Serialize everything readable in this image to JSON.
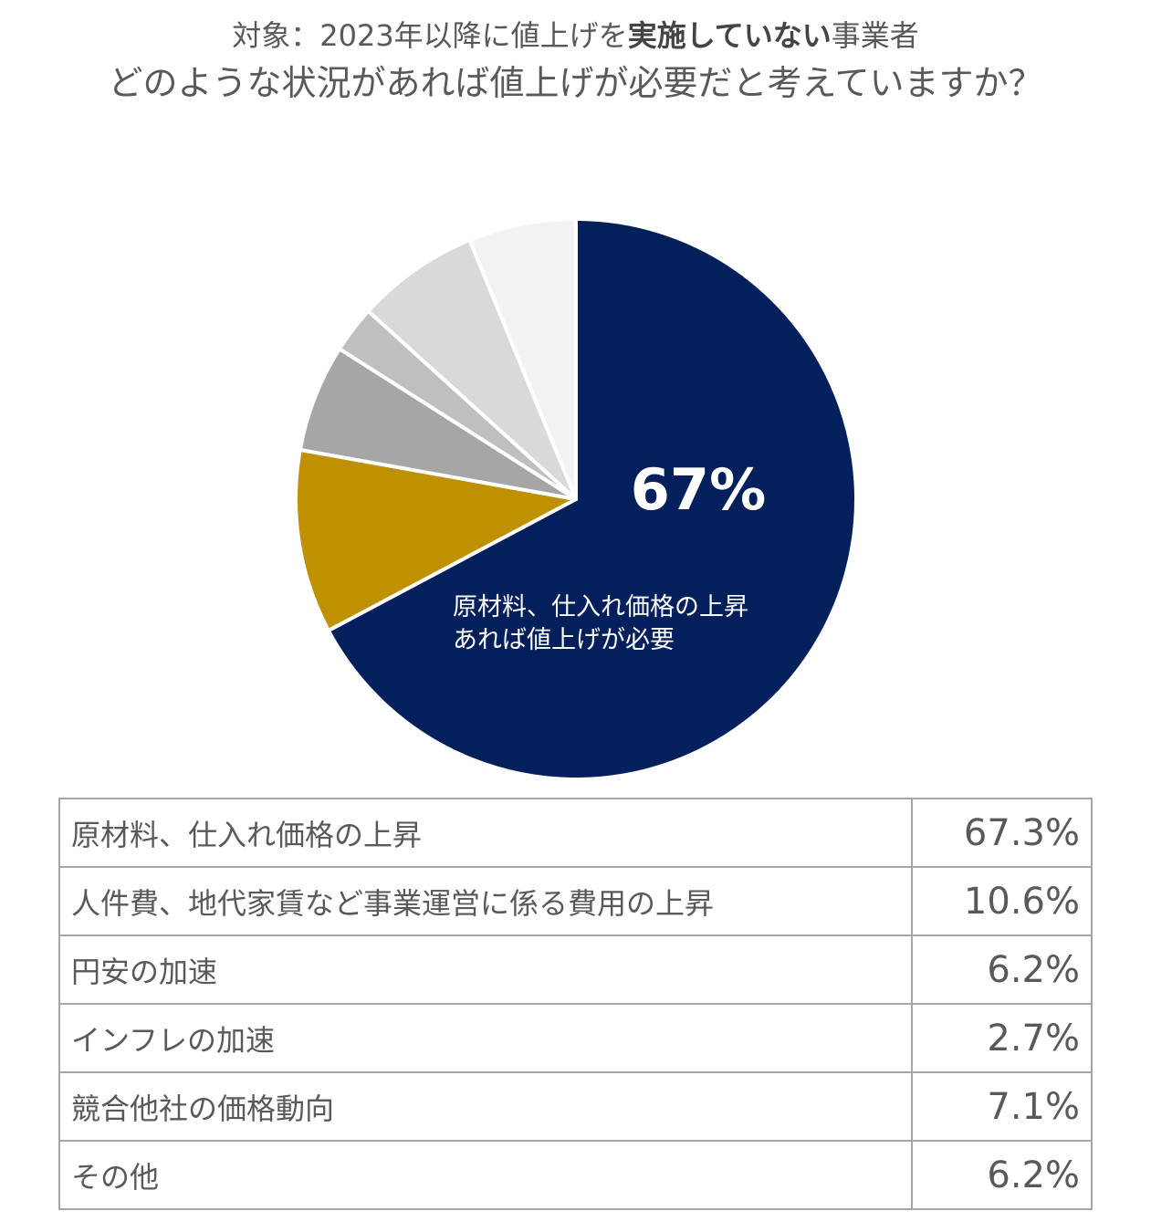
{
  "title": {
    "line1_prefix": "対象：2023年以降に値上げを",
    "line1_bold": "実施していない",
    "line1_suffix": "事業者",
    "line2": "どのような状況があれば値上げが必要だと考えていますか？"
  },
  "main_label": {
    "percent": "67%",
    "text_line1": "原材料、仕入れ価格の上昇",
    "text_line2": "あれば値上げが必要"
  },
  "chart_data": {
    "type": "pie",
    "categories": [
      "原材料、仕入れ価格の上昇",
      "人件費、地代家賃など事業運営に係る費用の上昇",
      "円安の加速",
      "インフレの加速",
      "競合他社の価格動向",
      "その他"
    ],
    "values": [
      67.3,
      10.6,
      6.2,
      2.7,
      7.1,
      6.2
    ],
    "colors": [
      "#04205c",
      "#bf9000",
      "#a6a6a6",
      "#bfbfbf",
      "#d9d9d9",
      "#f2f2f2"
    ],
    "start": "12 o'clock",
    "direction": "clockwise"
  },
  "table": {
    "rows": [
      {
        "label": "原材料、仕入れ価格の上昇",
        "value": "67.3%"
      },
      {
        "label": "人件費、地代家賃など事業運営に係る費用の上昇",
        "value": "10.6%"
      },
      {
        "label": "円安の加速",
        "value": "6.2%"
      },
      {
        "label": "インフレの加速",
        "value": "2.7%"
      },
      {
        "label": "競合他社の価格動向",
        "value": "7.1%"
      },
      {
        "label": "その他",
        "value": "6.2%"
      }
    ]
  }
}
